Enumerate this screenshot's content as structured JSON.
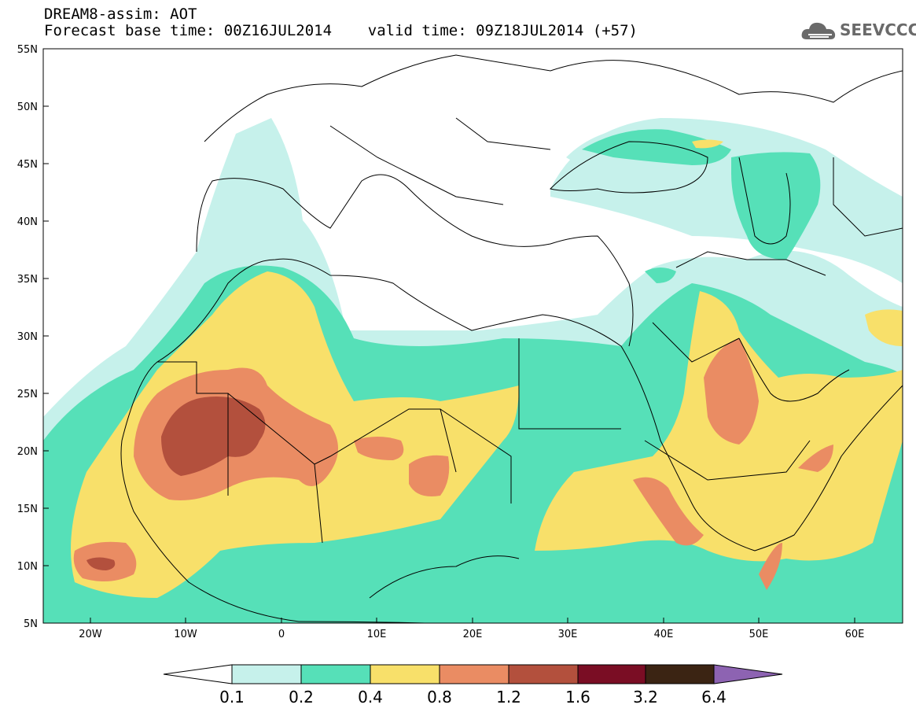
{
  "header": {
    "line1": "DREAM8-assim: AOT",
    "line2": "Forecast base time: 00Z16JUL2014    valid time: 09Z18JUL2014 (+57)"
  },
  "logo": {
    "text": "SEEVCCC",
    "icon": "cloud-icon",
    "color": "#6a6a6a"
  },
  "axes": {
    "lat_labels": [
      "55N",
      "50N",
      "45N",
      "40N",
      "35N",
      "30N",
      "25N",
      "20N",
      "15N",
      "10N",
      "5N"
    ],
    "lon_labels": [
      "20W",
      "10W",
      "0",
      "10E",
      "20E",
      "30E",
      "40E",
      "50E",
      "60E"
    ]
  },
  "colorbar": {
    "labels": [
      "0.1",
      "0.2",
      "0.4",
      "0.8",
      "1.2",
      "1.6",
      "3.2",
      "6.4"
    ],
    "colors": [
      "#ffffff",
      "#c6f1eb",
      "#56e0b8",
      "#f8e06a",
      "#ea8c63",
      "#b3503d",
      "#7a0d24",
      "#3b2413",
      "#8d63b2"
    ]
  },
  "map_colors": {
    "c1": "#c6f1eb",
    "c2": "#56e0b8",
    "c3": "#f8e06a",
    "c4": "#ea8c63",
    "c5": "#b3503d"
  }
}
